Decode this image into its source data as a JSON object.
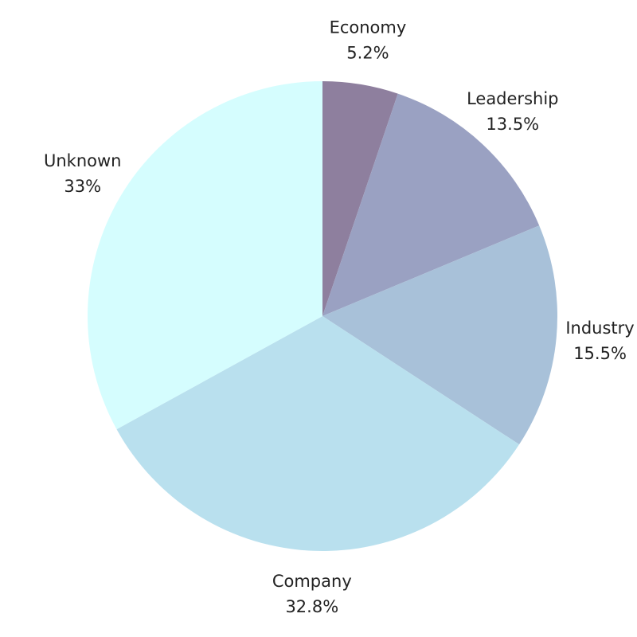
{
  "chart_data": {
    "type": "pie",
    "categories": [
      "Economy",
      "Leadership",
      "Industry",
      "Company",
      "Unknown"
    ],
    "values": [
      5.2,
      13.5,
      15.5,
      32.8,
      33
    ],
    "value_labels": [
      "5.2%",
      "13.5%",
      "15.5%",
      "32.8%",
      "33%"
    ],
    "colors": [
      "#8e7f9e",
      "#9aa1c2",
      "#a8c1d9",
      "#b9e0ee",
      "#d5fdfe"
    ]
  }
}
